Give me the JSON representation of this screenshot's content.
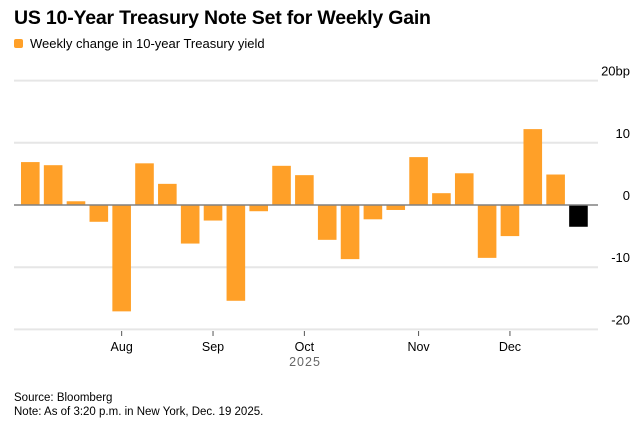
{
  "chart_data": {
    "type": "bar",
    "title": "US 10-Year Treasury Note Set for Weekly Gain",
    "legend": [
      {
        "label": "Weekly change in 10-year Treasury yield",
        "color": "#FFA028"
      }
    ],
    "legend_position": "top-left",
    "xlabel": "2025",
    "ylabel": "",
    "y_unit_label": "20bp",
    "ylim": [
      -20,
      20
    ],
    "yticks": [
      20,
      10,
      0,
      -10,
      -20
    ],
    "ytick_labels": [
      "20bp",
      "10",
      "0",
      "-10",
      "-20"
    ],
    "grid": true,
    "x_ticks": [
      {
        "label": "Aug",
        "bar_position": 4.5
      },
      {
        "label": "Sep",
        "bar_position": 8.5
      },
      {
        "label": "Oct",
        "bar_position": 12.5
      },
      {
        "label": "Nov",
        "bar_position": 17.5
      },
      {
        "label": "Dec",
        "bar_position": 21.5
      }
    ],
    "values": [
      6.9,
      6.4,
      0.6,
      -2.7,
      -17.1,
      6.7,
      3.4,
      -6.2,
      -2.5,
      -15.4,
      -1.0,
      6.3,
      4.8,
      -5.6,
      -8.7,
      -2.3,
      -0.8,
      7.7,
      1.9,
      5.1,
      -8.5,
      -5.0,
      12.2,
      4.9,
      -3.5
    ],
    "bar_colors": [
      "#FFA028",
      "#FFA028",
      "#FFA028",
      "#FFA028",
      "#FFA028",
      "#FFA028",
      "#FFA028",
      "#FFA028",
      "#FFA028",
      "#FFA028",
      "#FFA028",
      "#FFA028",
      "#FFA028",
      "#FFA028",
      "#FFA028",
      "#FFA028",
      "#FFA028",
      "#FFA028",
      "#FFA028",
      "#FFA028",
      "#FFA028",
      "#FFA028",
      "#FFA028",
      "#FFA028",
      "#000000"
    ]
  },
  "colors": {
    "bar": "#FFA028",
    "latest_bar": "#000000",
    "grid": "#e6e6e6",
    "zero_line": "#808080",
    "axis_text": "#000000",
    "year_text": "#666666"
  },
  "footer": {
    "source": "Source: Bloomberg",
    "note": "Note: As of 3:20 p.m. in New York, Dec. 19 2025."
  }
}
